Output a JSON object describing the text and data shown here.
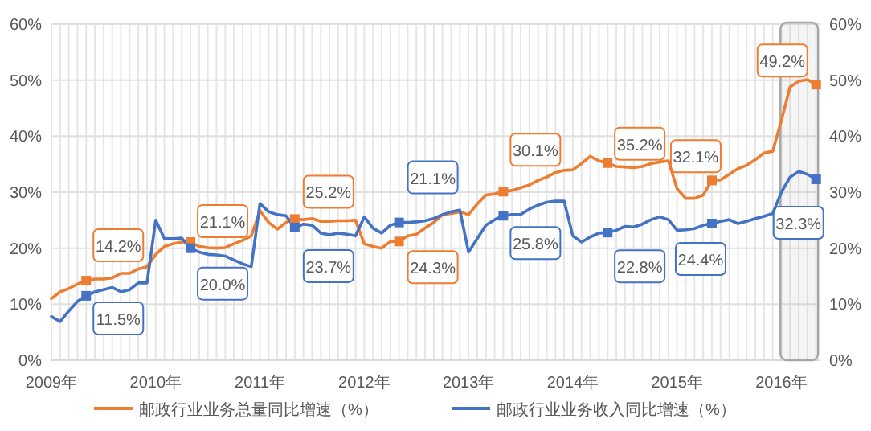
{
  "chart_data": {
    "type": "line",
    "x": [
      "2009-01",
      "2009-02",
      "2009-03",
      "2009-04",
      "2009-05",
      "2009-06",
      "2009-07",
      "2009-08",
      "2009-09",
      "2009-10",
      "2009-11",
      "2009-12",
      "2010-01",
      "2010-02",
      "2010-03",
      "2010-04",
      "2010-05",
      "2010-06",
      "2010-07",
      "2010-08",
      "2010-09",
      "2010-10",
      "2010-11",
      "2010-12",
      "2011-01",
      "2011-02",
      "2011-03",
      "2011-04",
      "2011-05",
      "2011-06",
      "2011-07",
      "2011-08",
      "2011-09",
      "2011-10",
      "2011-11",
      "2011-12",
      "2012-01",
      "2012-02",
      "2012-03",
      "2012-04",
      "2012-05",
      "2012-06",
      "2012-07",
      "2012-08",
      "2012-09",
      "2012-10",
      "2012-11",
      "2012-12",
      "2013-01",
      "2013-02",
      "2013-03",
      "2013-04",
      "2013-05",
      "2013-06",
      "2013-07",
      "2013-08",
      "2013-09",
      "2013-10",
      "2013-11",
      "2013-12",
      "2014-01",
      "2014-02",
      "2014-03",
      "2014-04",
      "2014-05",
      "2014-06",
      "2014-07",
      "2014-08",
      "2014-09",
      "2014-10",
      "2014-11",
      "2014-12",
      "2015-01",
      "2015-02",
      "2015-03",
      "2015-04",
      "2015-05",
      "2015-06",
      "2015-07",
      "2015-08",
      "2015-09",
      "2015-10",
      "2015-11",
      "2015-12",
      "2016-01",
      "2016-02",
      "2016-03",
      "2016-04",
      "2016-05"
    ],
    "series": [
      {
        "name": "邮政行业业务总量同比增速（%）",
        "color": "#ed7d31",
        "values": [
          11.0,
          12.2,
          12.8,
          13.6,
          14.2,
          14.5,
          14.5,
          14.7,
          15.5,
          15.5,
          16.3,
          16.7,
          18.9,
          20.3,
          20.8,
          21.1,
          21.1,
          20.3,
          20.1,
          20.0,
          20.1,
          20.8,
          21.4,
          22.2,
          26.7,
          24.6,
          23.4,
          24.6,
          25.2,
          25.1,
          25.3,
          24.8,
          24.8,
          24.9,
          24.9,
          25.0,
          20.8,
          20.3,
          20.0,
          21.2,
          21.2,
          22.2,
          22.5,
          23.6,
          24.6,
          26.0,
          26.2,
          26.5,
          26.0,
          27.9,
          29.5,
          29.7,
          30.1,
          30.3,
          30.8,
          31.3,
          32.1,
          32.7,
          33.5,
          33.9,
          34.0,
          35.1,
          36.4,
          35.6,
          35.2,
          34.6,
          34.5,
          34.4,
          34.6,
          35.1,
          35.4,
          35.6,
          30.6,
          28.9,
          28.9,
          29.5,
          32.1,
          32.2,
          33.2,
          34.2,
          34.8,
          35.8,
          37.0,
          37.3,
          42.8,
          48.8,
          49.8,
          50.1,
          49.2
        ]
      },
      {
        "name": "邮政行业业务收入同比增速（%）",
        "color": "#4472c4",
        "values": [
          7.8,
          6.9,
          8.8,
          10.5,
          11.5,
          12.2,
          12.6,
          13.0,
          12.2,
          12.6,
          13.8,
          13.8,
          25.0,
          21.7,
          21.7,
          21.8,
          20.0,
          19.3,
          18.9,
          18.8,
          18.6,
          17.9,
          17.2,
          16.7,
          28.0,
          26.5,
          26.0,
          25.8,
          23.7,
          24.3,
          24.1,
          22.7,
          22.4,
          22.7,
          22.5,
          22.2,
          25.6,
          23.6,
          22.7,
          24.1,
          24.6,
          24.6,
          24.7,
          24.9,
          25.3,
          26.0,
          26.5,
          26.8,
          19.3,
          21.7,
          24.1,
          25.1,
          25.8,
          26.0,
          26.0,
          27.0,
          27.7,
          28.2,
          28.4,
          28.4,
          22.2,
          21.1,
          22.0,
          22.7,
          22.8,
          23.2,
          23.9,
          23.8,
          24.3,
          25.1,
          25.6,
          25.1,
          23.2,
          23.3,
          23.5,
          24.1,
          24.4,
          24.8,
          25.1,
          24.4,
          24.8,
          25.3,
          25.7,
          26.2,
          30.0,
          32.7,
          33.7,
          33.2,
          32.3
        ]
      },
      {
        "type": "scatter",
        "color": "#ed7d31",
        "marker": "square",
        "x": [
          "2009-05",
          "2010-05",
          "2011-05",
          "2012-05",
          "2013-05",
          "2014-05",
          "2015-05",
          "2016-05"
        ],
        "values": [
          14.2,
          21.1,
          25.2,
          21.2,
          30.1,
          35.2,
          32.1,
          49.2
        ]
      },
      {
        "type": "scatter",
        "color": "#4472c4",
        "marker": "square",
        "x": [
          "2009-05",
          "2010-05",
          "2011-05",
          "2012-05",
          "2013-05",
          "2014-05",
          "2015-05",
          "2016-05"
        ],
        "values": [
          11.5,
          20.0,
          23.7,
          24.6,
          25.8,
          22.8,
          24.4,
          32.3
        ]
      }
    ],
    "annotations": [
      {
        "text": "14.2%",
        "x": "2009-05",
        "y": 14.2
      },
      {
        "text": "21.1%",
        "x": "2010-05",
        "y": 21.1
      },
      {
        "text": "25.2%",
        "x": "2011-05",
        "y": 25.2
      },
      {
        "text": "24.3%",
        "x": "2012-05",
        "y": 21.2
      },
      {
        "text": "30.1%",
        "x": "2013-05",
        "y": 30.1
      },
      {
        "text": "35.2%",
        "x": "2014-05",
        "y": 35.2
      },
      {
        "text": "32.1%",
        "x": "2015-05",
        "y": 32.1
      },
      {
        "text": "49.2%",
        "x": "2016-05",
        "y": 49.2
      },
      {
        "text": "11.5%",
        "x": "2009-05",
        "y": 11.5
      },
      {
        "text": "20.0%",
        "x": "2010-05",
        "y": 20.0
      },
      {
        "text": "23.7%",
        "x": "2011-05",
        "y": 23.7
      },
      {
        "text": "21.1%",
        "x": "2012-05",
        "y": 24.6
      },
      {
        "text": "25.8%",
        "x": "2013-05",
        "y": 25.8
      },
      {
        "text": "22.8%",
        "x": "2014-05",
        "y": 22.8
      },
      {
        "text": "24.4%",
        "x": "2015-05",
        "y": 24.4
      },
      {
        "text": "32.3%",
        "x": "2016-05",
        "y": 32.3
      }
    ],
    "bands": [
      {
        "axis": "x",
        "from": "2015-12-28",
        "to": "2016-05-08",
        "color": "#a6a6a6"
      }
    ],
    "xlim": [
      "2009-01",
      "2016-05-13"
    ],
    "xticks": [
      {
        "value": "2009-01",
        "label": "2009年"
      },
      {
        "value": "2009-02",
        "label": null
      },
      {
        "value": "2009-03",
        "label": null
      },
      {
        "value": "2009-04",
        "label": null
      },
      {
        "value": "2009-05",
        "label": null
      },
      {
        "value": "2009-06",
        "label": null
      },
      {
        "value": "2009-07",
        "label": null
      },
      {
        "value": "2009-08",
        "label": null
      },
      {
        "value": "2009-09",
        "label": null
      },
      {
        "value": "2009-10",
        "label": null
      },
      {
        "value": "2009-11",
        "label": null
      },
      {
        "value": "2009-12",
        "label": null
      },
      {
        "value": "2010-01",
        "label": "2010年"
      },
      {
        "value": "2010-02",
        "label": null
      },
      {
        "value": "2010-03",
        "label": null
      },
      {
        "value": "2010-04",
        "label": null
      },
      {
        "value": "2010-05",
        "label": null
      },
      {
        "value": "2010-06",
        "label": null
      },
      {
        "value": "2010-07",
        "label": null
      },
      {
        "value": "2010-08",
        "label": null
      },
      {
        "value": "2010-09",
        "label": null
      },
      {
        "value": "2010-10",
        "label": null
      },
      {
        "value": "2010-11",
        "label": null
      },
      {
        "value": "2010-12",
        "label": null
      },
      {
        "value": "2011-01",
        "label": "2011年"
      },
      {
        "value": "2011-02",
        "label": null
      },
      {
        "value": "2011-03",
        "label": null
      },
      {
        "value": "2011-04",
        "label": null
      },
      {
        "value": "2011-05",
        "label": null
      },
      {
        "value": "2011-06",
        "label": null
      },
      {
        "value": "2011-07",
        "label": null
      },
      {
        "value": "2011-08",
        "label": null
      },
      {
        "value": "2011-09",
        "label": null
      },
      {
        "value": "2011-10",
        "label": null
      },
      {
        "value": "2011-11",
        "label": null
      },
      {
        "value": "2011-12",
        "label": null
      },
      {
        "value": "2012-01",
        "label": "2012年"
      },
      {
        "value": "2012-02",
        "label": null
      },
      {
        "value": "2012-03",
        "label": null
      },
      {
        "value": "2012-04",
        "label": null
      },
      {
        "value": "2012-05",
        "label": null
      },
      {
        "value": "2012-06",
        "label": null
      },
      {
        "value": "2012-07",
        "label": null
      },
      {
        "value": "2012-08",
        "label": null
      },
      {
        "value": "2012-09",
        "label": null
      },
      {
        "value": "2012-10",
        "label": null
      },
      {
        "value": "2012-11",
        "label": null
      },
      {
        "value": "2012-12",
        "label": null
      },
      {
        "value": "2013-01",
        "label": "2013年"
      },
      {
        "value": "2013-02",
        "label": null
      },
      {
        "value": "2013-03",
        "label": null
      },
      {
        "value": "2013-04",
        "label": null
      },
      {
        "value": "2013-05",
        "label": null
      },
      {
        "value": "2013-06",
        "label": null
      },
      {
        "value": "2013-07",
        "label": null
      },
      {
        "value": "2013-08",
        "label": null
      },
      {
        "value": "2013-09",
        "label": null
      },
      {
        "value": "2013-10",
        "label": null
      },
      {
        "value": "2013-11",
        "label": null
      },
      {
        "value": "2013-12",
        "label": null
      },
      {
        "value": "2014-01",
        "label": "2014年"
      },
      {
        "value": "2014-02",
        "label": null
      },
      {
        "value": "2014-03",
        "label": null
      },
      {
        "value": "2014-04",
        "label": null
      },
      {
        "value": "2014-05",
        "label": null
      },
      {
        "value": "2014-06",
        "label": null
      },
      {
        "value": "2014-07",
        "label": null
      },
      {
        "value": "2014-08",
        "label": null
      },
      {
        "value": "2014-09",
        "label": null
      },
      {
        "value": "2014-10",
        "label": null
      },
      {
        "value": "2014-11",
        "label": null
      },
      {
        "value": "2014-12",
        "label": null
      },
      {
        "value": "2015-01",
        "label": "2015年"
      },
      {
        "value": "2015-02",
        "label": null
      },
      {
        "value": "2015-03",
        "label": null
      },
      {
        "value": "2015-04",
        "label": null
      },
      {
        "value": "2015-05",
        "label": null
      },
      {
        "value": "2015-06",
        "label": null
      },
      {
        "value": "2015-07",
        "label": null
      },
      {
        "value": "2015-08",
        "label": null
      },
      {
        "value": "2015-09",
        "label": null
      },
      {
        "value": "2015-10",
        "label": null
      },
      {
        "value": "2015-11",
        "label": null
      },
      {
        "value": "2015-12",
        "label": null
      },
      {
        "value": "2016-01",
        "label": "2016年"
      },
      {
        "value": "2016-02",
        "label": null
      },
      {
        "value": "2016-03",
        "label": null
      },
      {
        "value": "2016-04",
        "label": null
      },
      {
        "value": "2016-05",
        "label": null
      }
    ],
    "ylim": [
      0,
      60
    ],
    "yticks": [
      {
        "value": 0,
        "label": "0%"
      },
      {
        "value": 10,
        "label": "10%"
      },
      {
        "value": 20,
        "label": "20%"
      },
      {
        "value": 30,
        "label": "30%"
      },
      {
        "value": 40,
        "label": "40%"
      },
      {
        "value": 50,
        "label": "50%"
      },
      {
        "value": 60,
        "label": "60%"
      }
    ],
    "y2lim": [
      0,
      60
    ],
    "y2ticks": [
      {
        "value": 0,
        "label": "0%"
      },
      {
        "value": 10,
        "label": "10%"
      },
      {
        "value": 20,
        "label": "20%"
      },
      {
        "value": 30,
        "label": "30%"
      },
      {
        "value": 40,
        "label": "40%"
      },
      {
        "value": 50,
        "label": "50%"
      },
      {
        "value": 60,
        "label": "60%"
      }
    ],
    "grid": true,
    "legend": "bottom",
    "marker": "none",
    "line_style": "solid"
  }
}
